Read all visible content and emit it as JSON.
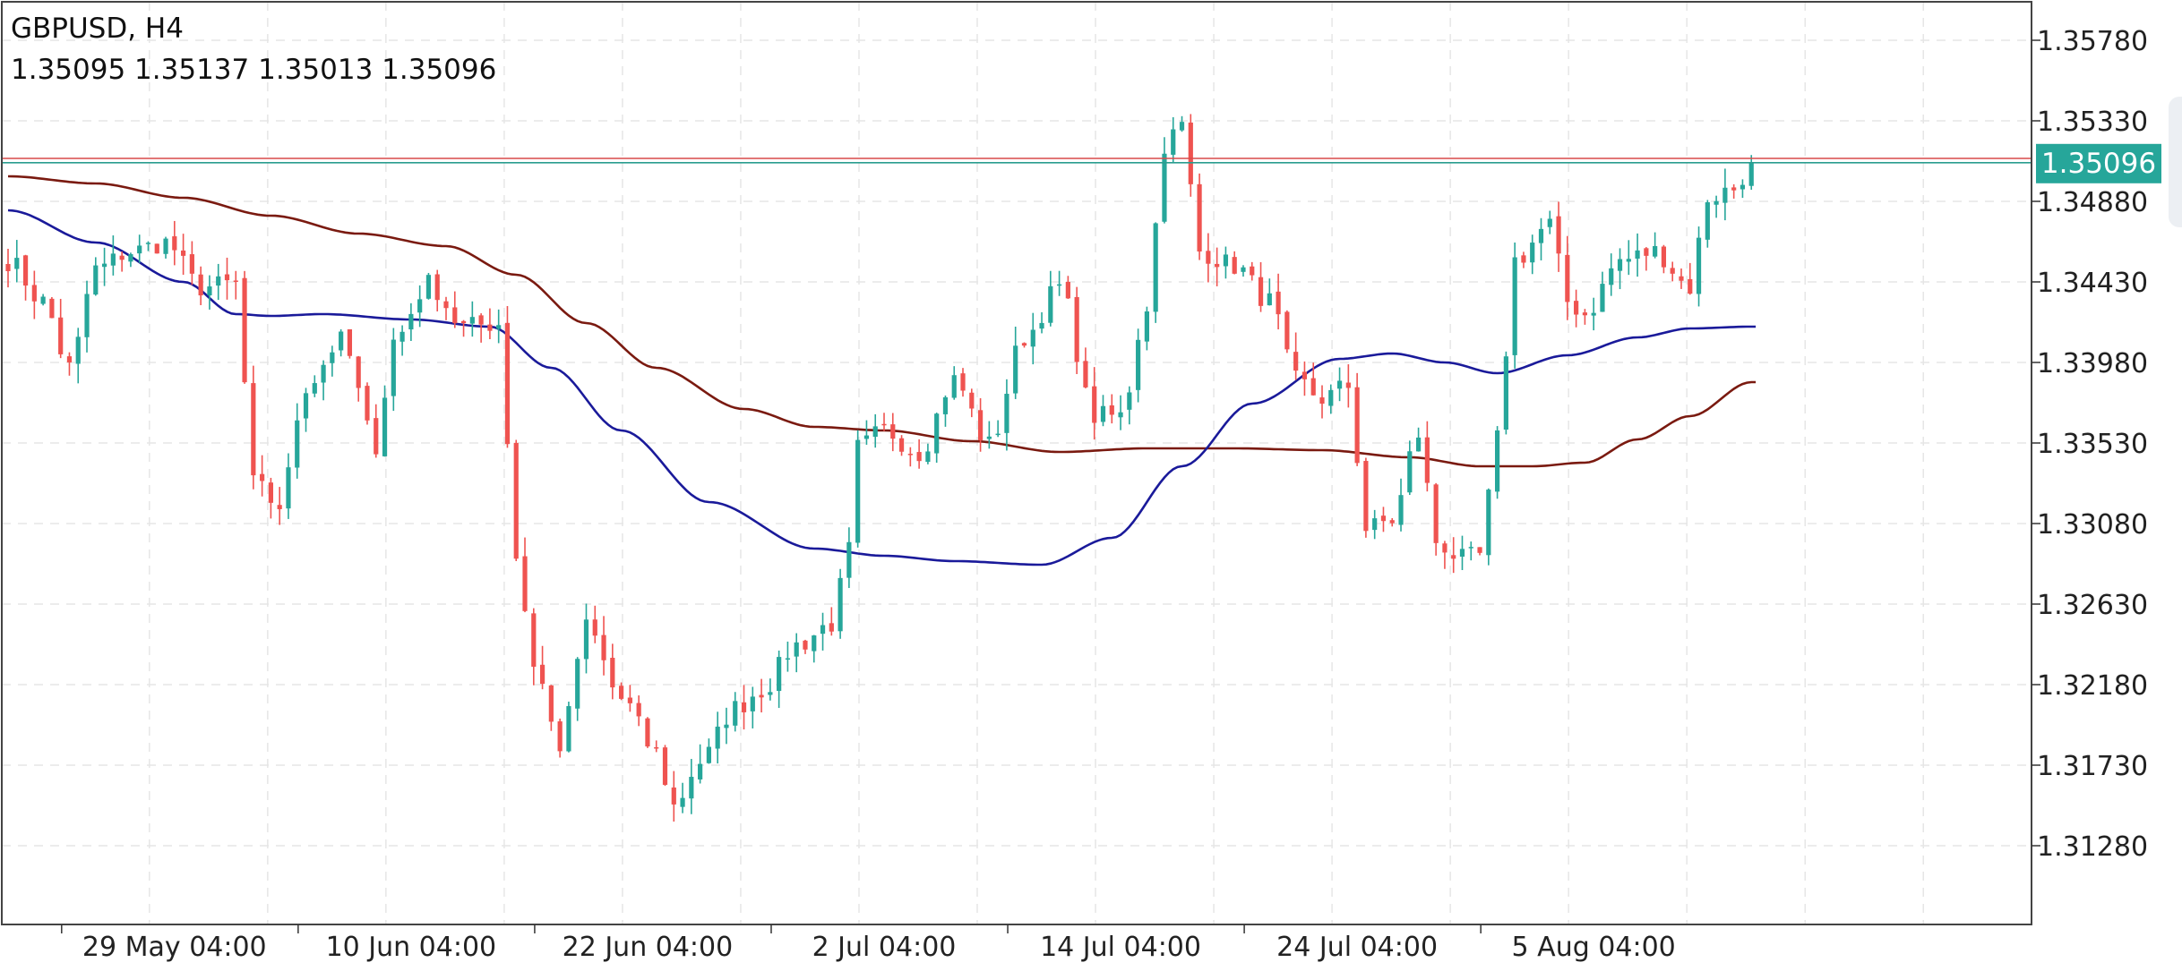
{
  "header": {
    "symbol": "GBPUSD, H4",
    "ohlc": "1.35095 1.35137 1.35013 1.35096"
  },
  "colors": {
    "up": "#26a69a",
    "down": "#ef5350",
    "ma_fast": "#1a1a9a",
    "ma_slow": "#7a1a10",
    "grid": "#e6e6e6",
    "ask_line": "#d94a4a",
    "bid_line": "#2a9d8f",
    "price_label_bg": "#26a69a",
    "ask_marker": "#e05252"
  },
  "chart_data": {
    "type": "candlestick",
    "symbol": "GBPUSD",
    "timeframe": "H4",
    "last_price": 1.35096,
    "last_price_label": "1.35096",
    "ask_price": 1.3512,
    "y_ticks": [
      "1.35780",
      "1.35330",
      "1.34880",
      "1.34430",
      "1.33980",
      "1.33530",
      "1.33080",
      "1.32630",
      "1.32180",
      "1.31730",
      "1.31280"
    ],
    "y_tick_values": [
      1.3578,
      1.3533,
      1.3488,
      1.3443,
      1.3398,
      1.3353,
      1.3308,
      1.3263,
      1.3218,
      1.3173,
      1.3128
    ],
    "x_ticks": [
      "29 May 04:00",
      "10 Jun 04:00",
      "22 Jun 04:00",
      "2 Jul 04:00",
      "14 Jul 04:00",
      "24 Jul 04:00",
      "5 Aug 04:00"
    ],
    "x_tick_bar_index": [
      10,
      37,
      64,
      91,
      118,
      145,
      172
    ],
    "bar_count": 200,
    "anchors": [
      [
        0,
        1.3455
      ],
      [
        4,
        1.3432
      ],
      [
        7,
        1.3395
      ],
      [
        10,
        1.345
      ],
      [
        14,
        1.346
      ],
      [
        18,
        1.3465
      ],
      [
        22,
        1.344
      ],
      [
        26,
        1.3442
      ],
      [
        28,
        1.333
      ],
      [
        31,
        1.3318
      ],
      [
        34,
        1.3385
      ],
      [
        38,
        1.341
      ],
      [
        42,
        1.3352
      ],
      [
        44,
        1.341
      ],
      [
        48,
        1.3442
      ],
      [
        52,
        1.3418
      ],
      [
        56,
        1.342
      ],
      [
        58,
        1.329
      ],
      [
        60,
        1.323
      ],
      [
        63,
        1.3184
      ],
      [
        66,
        1.325
      ],
      [
        70,
        1.321
      ],
      [
        74,
        1.318
      ],
      [
        76,
        1.315
      ],
      [
        79,
        1.3175
      ],
      [
        83,
        1.3205
      ],
      [
        86,
        1.3215
      ],
      [
        90,
        1.324
      ],
      [
        94,
        1.3252
      ],
      [
        96,
        1.3293
      ],
      [
        97,
        1.335
      ],
      [
        100,
        1.336
      ],
      [
        104,
        1.3348
      ],
      [
        108,
        1.3388
      ],
      [
        112,
        1.3352
      ],
      [
        116,
        1.3412
      ],
      [
        120,
        1.344
      ],
      [
        124,
        1.3368
      ],
      [
        127,
        1.3368
      ],
      [
        130,
        1.343
      ],
      [
        132,
        1.352
      ],
      [
        134,
        1.353
      ],
      [
        136,
        1.346
      ],
      [
        140,
        1.3452
      ],
      [
        144,
        1.3432
      ],
      [
        147,
        1.3388
      ],
      [
        150,
        1.3378
      ],
      [
        153,
        1.3385
      ],
      [
        155,
        1.3305
      ],
      [
        158,
        1.331
      ],
      [
        161,
        1.3358
      ],
      [
        163,
        1.3298
      ],
      [
        166,
        1.3288
      ],
      [
        168,
        1.329
      ],
      [
        170,
        1.3355
      ],
      [
        172,
        1.3455
      ],
      [
        176,
        1.3475
      ],
      [
        178,
        1.3432
      ],
      [
        180,
        1.3425
      ],
      [
        184,
        1.3455
      ],
      [
        188,
        1.346
      ],
      [
        192,
        1.344
      ],
      [
        194,
        1.349
      ],
      [
        197,
        1.3495
      ],
      [
        199,
        1.35096
      ]
    ],
    "ma_fast_anchors": [
      [
        0,
        1.3483
      ],
      [
        10,
        1.3465
      ],
      [
        20,
        1.3443
      ],
      [
        26,
        1.3425
      ],
      [
        30,
        1.3424
      ],
      [
        36,
        1.3425
      ],
      [
        46,
        1.3422
      ],
      [
        55,
        1.3418
      ],
      [
        62,
        1.3395
      ],
      [
        70,
        1.336
      ],
      [
        80,
        1.332
      ],
      [
        92,
        1.3294
      ],
      [
        100,
        1.329
      ],
      [
        108,
        1.3287
      ],
      [
        118,
        1.3285
      ],
      [
        126,
        1.33
      ],
      [
        134,
        1.334
      ],
      [
        142,
        1.3375
      ],
      [
        152,
        1.34
      ],
      [
        158,
        1.3403
      ],
      [
        164,
        1.3398
      ],
      [
        170,
        1.3392
      ],
      [
        178,
        1.3402
      ],
      [
        186,
        1.3412
      ],
      [
        192,
        1.3417
      ],
      [
        199,
        1.3418
      ]
    ],
    "ma_slow_anchors": [
      [
        0,
        1.3502
      ],
      [
        10,
        1.3498
      ],
      [
        20,
        1.349
      ],
      [
        30,
        1.348
      ],
      [
        40,
        1.347
      ],
      [
        50,
        1.3463
      ],
      [
        58,
        1.3447
      ],
      [
        66,
        1.342
      ],
      [
        74,
        1.3395
      ],
      [
        84,
        1.3372
      ],
      [
        92,
        1.3362
      ],
      [
        100,
        1.336
      ],
      [
        110,
        1.3354
      ],
      [
        120,
        1.3348
      ],
      [
        130,
        1.335
      ],
      [
        140,
        1.335
      ],
      [
        150,
        1.3349
      ],
      [
        160,
        1.3345
      ],
      [
        168,
        1.334
      ],
      [
        174,
        1.334
      ],
      [
        180,
        1.3342
      ],
      [
        186,
        1.3355
      ],
      [
        192,
        1.3368
      ],
      [
        199,
        1.3387
      ]
    ]
  }
}
